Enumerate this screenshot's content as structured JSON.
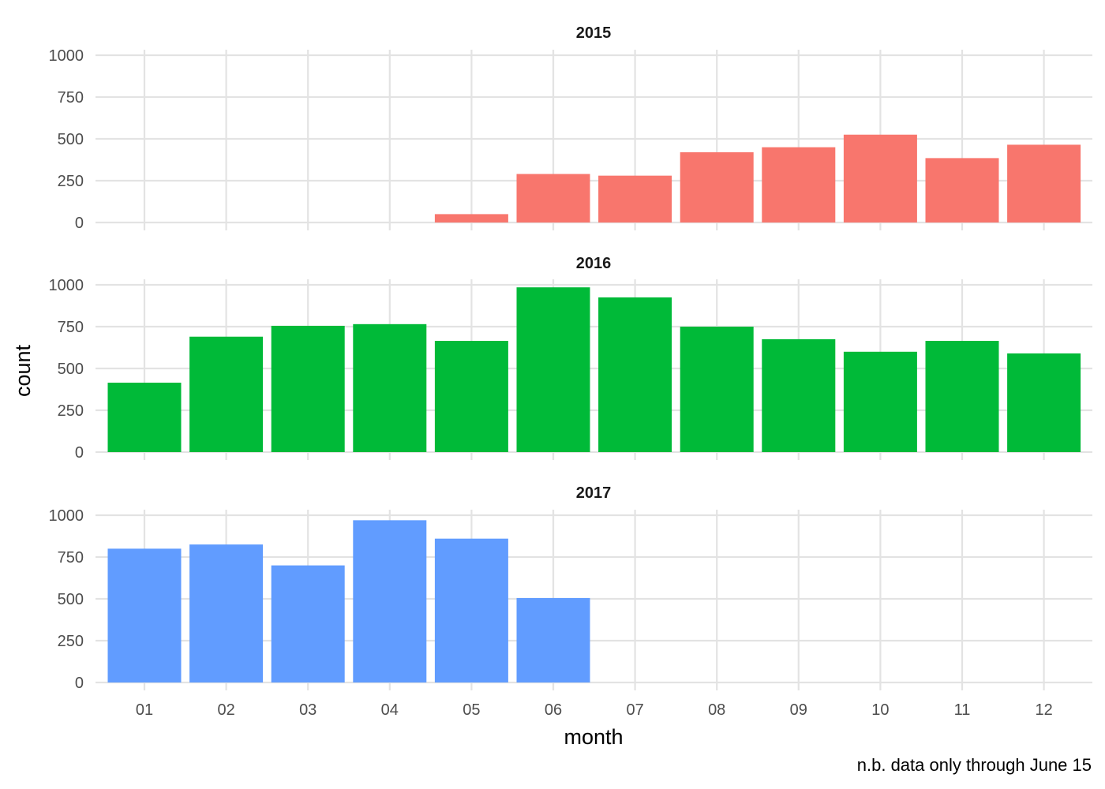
{
  "chart_data": {
    "type": "bar",
    "facet_layout": "stacked-vertical",
    "xlabel": "month",
    "ylabel": "count",
    "caption": "n.b. data only through June 15",
    "categories": [
      "01",
      "02",
      "03",
      "04",
      "05",
      "06",
      "07",
      "08",
      "09",
      "10",
      "11",
      "12"
    ],
    "ylim": [
      0,
      1000
    ],
    "yticks": [
      0,
      250,
      500,
      750,
      1000
    ],
    "grid": true,
    "legend": "none",
    "panels": [
      {
        "title": "2015",
        "color": "#F8766D",
        "values": [
          null,
          null,
          null,
          null,
          50,
          290,
          280,
          420,
          450,
          525,
          385,
          465
        ]
      },
      {
        "title": "2016",
        "color": "#00BA38",
        "values": [
          415,
          690,
          755,
          765,
          665,
          985,
          925,
          750,
          675,
          600,
          665,
          590
        ]
      },
      {
        "title": "2017",
        "color": "#619CFF",
        "values": [
          800,
          825,
          700,
          970,
          860,
          505,
          null,
          null,
          null,
          null,
          null,
          null
        ]
      }
    ]
  }
}
